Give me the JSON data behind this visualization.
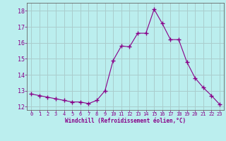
{
  "x": [
    0,
    1,
    2,
    3,
    4,
    5,
    6,
    7,
    8,
    9,
    10,
    11,
    12,
    13,
    14,
    15,
    16,
    17,
    18,
    19,
    20,
    21,
    22,
    23
  ],
  "y": [
    12.8,
    12.7,
    12.6,
    12.5,
    12.4,
    12.3,
    12.3,
    12.2,
    12.4,
    13.0,
    14.9,
    15.8,
    15.75,
    16.6,
    16.6,
    18.1,
    17.2,
    16.2,
    16.2,
    14.8,
    13.8,
    13.2,
    12.7,
    12.15
  ],
  "line_color": "#880088",
  "marker": "+",
  "marker_size": 4,
  "bg_color": "#bbeeee",
  "grid_color": "#aacccc",
  "xlim": [
    -0.5,
    23.5
  ],
  "ylim": [
    11.8,
    18.5
  ],
  "yticks": [
    12,
    13,
    14,
    15,
    16,
    17,
    18
  ],
  "xticks": [
    0,
    1,
    2,
    3,
    4,
    5,
    6,
    7,
    8,
    9,
    10,
    11,
    12,
    13,
    14,
    15,
    16,
    17,
    18,
    19,
    20,
    21,
    22,
    23
  ],
  "xlabel": "Windchill (Refroidissement éolien,°C)",
  "label_color": "#880088",
  "tick_color": "#880088",
  "spine_color": "#666666"
}
